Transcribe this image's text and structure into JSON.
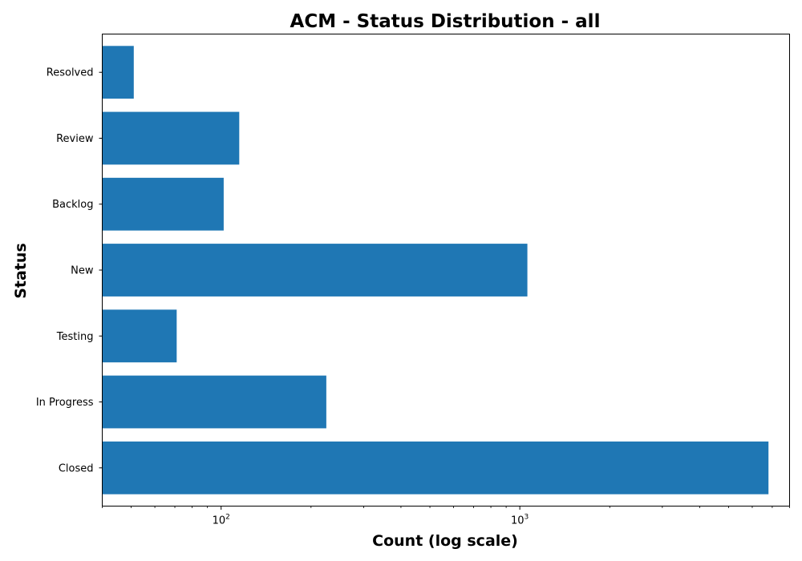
{
  "chart_data": {
    "type": "bar",
    "orientation": "horizontal",
    "title": "ACM - Status Distribution - all",
    "xlabel": "Count (log scale)",
    "ylabel": "Status",
    "x_scale": "log",
    "xlim": [
      40,
      8000
    ],
    "x_major_tick_labels": [
      {
        "value": 100,
        "base": "10",
        "exp": "2"
      },
      {
        "value": 1000,
        "base": "10",
        "exp": "3"
      }
    ],
    "categories": [
      "Resolved",
      "Review",
      "Backlog",
      "New",
      "Testing",
      "In Progress",
      "Closed"
    ],
    "values": [
      51,
      115,
      102,
      1060,
      71,
      225,
      6800
    ],
    "bar_color": "#1f77b4",
    "grid": false,
    "legend": false
  }
}
